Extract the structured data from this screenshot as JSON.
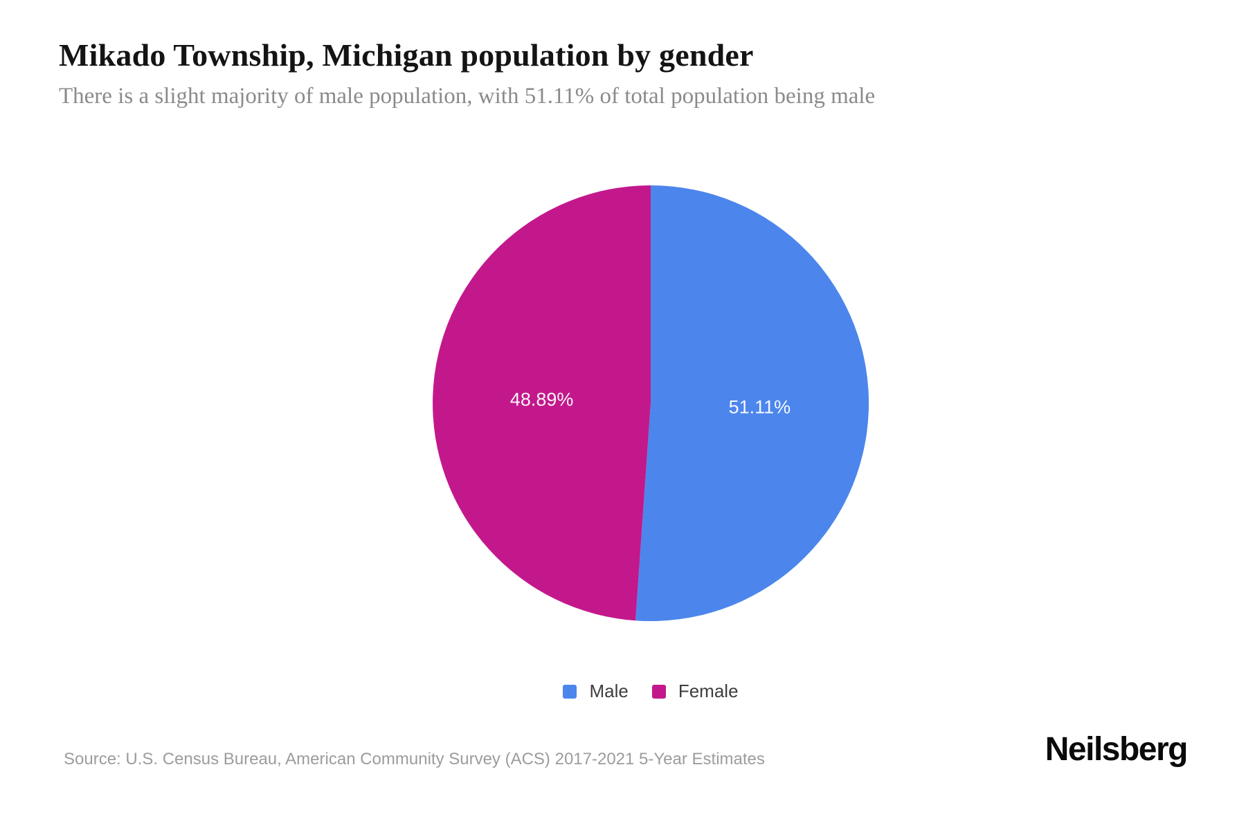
{
  "header": {
    "title": "Mikado Township, Michigan population by gender",
    "subtitle": "There is a slight majority of male population, with 51.11% of total population being male"
  },
  "chart_data": {
    "type": "pie",
    "title": "Mikado Township, Michigan population by gender",
    "start_angle_deg": 0,
    "direction": "clockwise",
    "series": [
      {
        "name": "Male",
        "value": 51.11,
        "label": "51.11%",
        "color": "#4C86EC"
      },
      {
        "name": "Female",
        "value": 48.89,
        "label": "48.89%",
        "color": "#C3188C"
      }
    ],
    "label_color": "#ffffff",
    "legend_position": "bottom"
  },
  "footer": {
    "source": "Source: U.S. Census Bureau, American Community Survey (ACS) 2017-2021 5-Year Estimates",
    "brand": "Neilsberg"
  }
}
